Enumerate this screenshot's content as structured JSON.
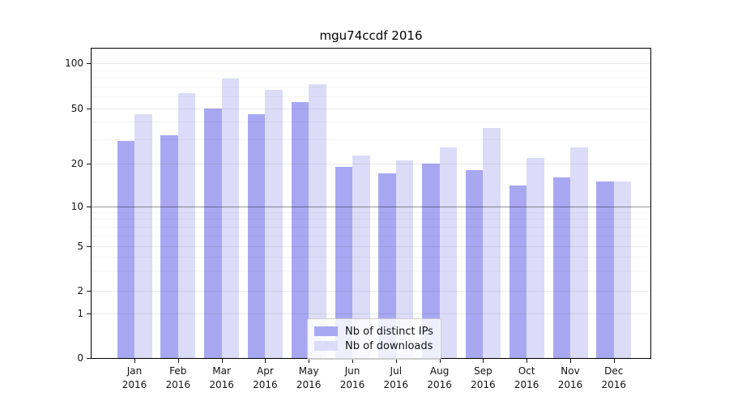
{
  "chart_data": {
    "type": "bar",
    "title": "mgu74ccdf 2016",
    "categories": [
      "Jan",
      "Feb",
      "Mar",
      "Apr",
      "May",
      "Jun",
      "Jul",
      "Aug",
      "Sep",
      "Oct",
      "Nov",
      "Dec"
    ],
    "x_tick_year": "2016",
    "series": [
      {
        "name": "Nb of distinct IPs",
        "color": "#a8a8f2",
        "values": [
          29,
          32,
          50,
          45,
          55,
          19,
          17,
          20,
          18,
          14,
          16,
          15
        ]
      },
      {
        "name": "Nb of downloads",
        "color": "#dcdcf8",
        "values": [
          45,
          63,
          79,
          66,
          72,
          23,
          21,
          26,
          36,
          22,
          26,
          15
        ]
      }
    ],
    "y_axis": {
      "scale": "log-like (compressed below 10, linear 0-1)",
      "ticks": [
        100,
        50,
        20,
        10,
        5,
        2,
        1,
        0
      ],
      "minor_ticks": [
        3,
        4,
        6,
        7,
        8,
        9,
        30,
        40,
        60,
        70,
        80,
        90
      ]
    },
    "reference_line": {
      "value": 10,
      "color": "rgba(0,0,0,0.36)"
    },
    "grid": {
      "show": true,
      "major_color": "rgba(0,0,0,0.085)",
      "minor_color": "rgba(0,0,0,0.045)"
    },
    "legend": {
      "position": "lower-center",
      "border_color": "#cccccc"
    }
  }
}
